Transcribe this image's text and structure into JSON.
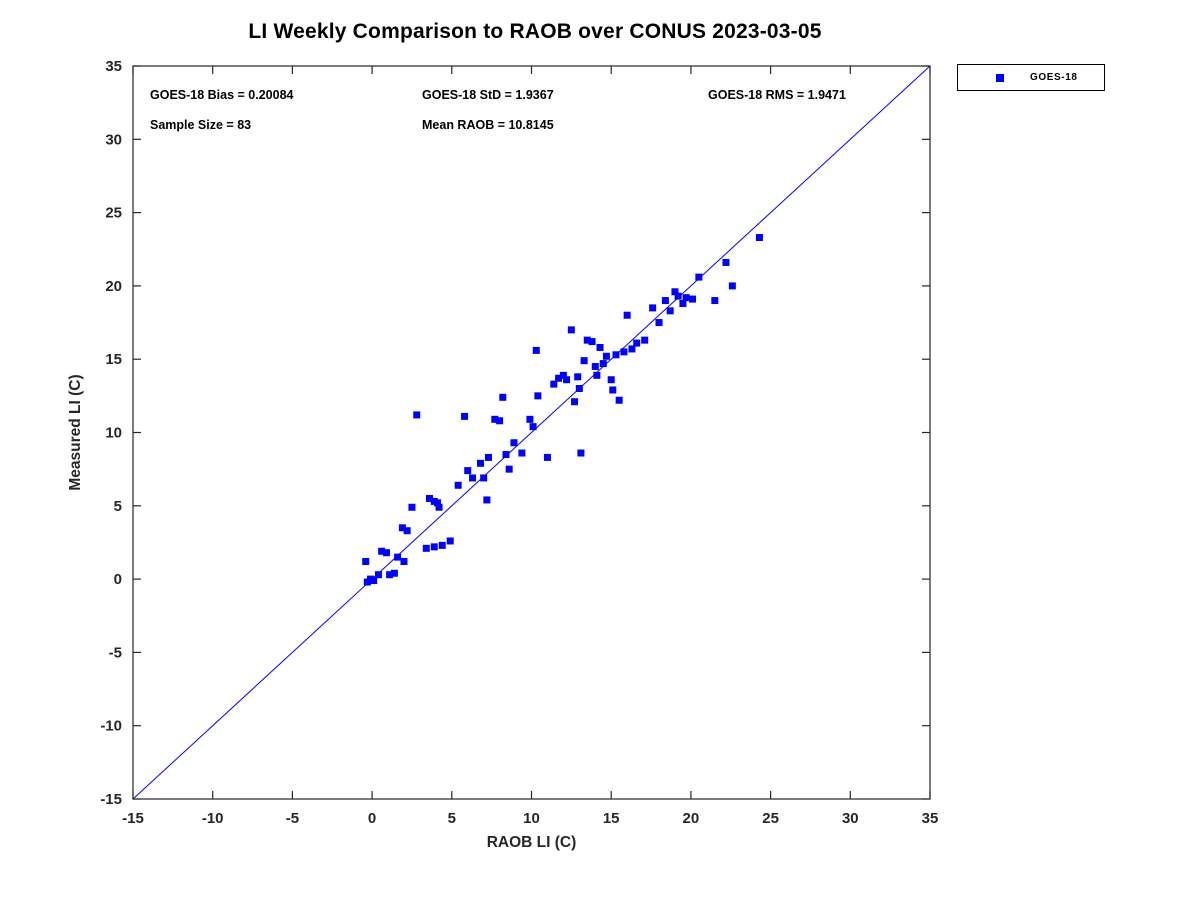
{
  "chart_data": {
    "type": "scatter",
    "title": "LI Weekly Comparison to RAOB over CONUS 2023-03-05",
    "xlabel": "RAOB LI (C)",
    "ylabel": "Measured LI (C)",
    "xlim": [
      -15,
      35
    ],
    "ylim": [
      -15,
      35
    ],
    "xticks": [
      -15,
      -10,
      -5,
      0,
      5,
      10,
      15,
      20,
      25,
      30,
      35
    ],
    "yticks": [
      -15,
      -10,
      -5,
      0,
      5,
      10,
      15,
      20,
      25,
      30,
      35
    ],
    "grid": false,
    "legend_position": "outside-top-right",
    "marker_color": "#0000ff",
    "identity_line": {
      "from": [
        -15,
        -15
      ],
      "to": [
        35,
        35
      ],
      "color": "#0000ff"
    },
    "stats": {
      "bias_label": "GOES-18 Bias = 0.20084",
      "std_label": "GOES-18 StD = 1.9367",
      "rms_label": "GOES-18 RMS = 1.9471",
      "sample_label": "Sample Size = 83",
      "mean_label": "Mean RAOB = 10.8145"
    },
    "series": [
      {
        "name": "GOES-18",
        "marker": "square",
        "points": [
          [
            -0.4,
            1.2
          ],
          [
            -0.3,
            -0.2
          ],
          [
            -0.1,
            0.0
          ],
          [
            0.1,
            -0.1
          ],
          [
            0.4,
            0.3
          ],
          [
            0.6,
            1.9
          ],
          [
            0.9,
            1.8
          ],
          [
            1.1,
            0.3
          ],
          [
            1.4,
            0.4
          ],
          [
            1.6,
            1.5
          ],
          [
            2.0,
            1.2
          ],
          [
            1.9,
            3.5
          ],
          [
            2.2,
            3.3
          ],
          [
            2.5,
            4.9
          ],
          [
            2.8,
            11.2
          ],
          [
            3.4,
            2.1
          ],
          [
            3.9,
            2.2
          ],
          [
            3.6,
            5.5
          ],
          [
            3.9,
            5.3
          ],
          [
            4.1,
            5.2
          ],
          [
            4.2,
            4.9
          ],
          [
            4.4,
            2.3
          ],
          [
            4.9,
            2.6
          ],
          [
            5.4,
            6.4
          ],
          [
            5.8,
            11.1
          ],
          [
            6.0,
            7.4
          ],
          [
            6.3,
            6.9
          ],
          [
            6.8,
            7.9
          ],
          [
            7.0,
            6.9
          ],
          [
            7.2,
            5.4
          ],
          [
            7.3,
            8.3
          ],
          [
            7.7,
            10.9
          ],
          [
            8.0,
            10.8
          ],
          [
            8.2,
            12.4
          ],
          [
            8.4,
            8.5
          ],
          [
            8.6,
            7.5
          ],
          [
            8.9,
            9.3
          ],
          [
            9.4,
            8.6
          ],
          [
            9.9,
            10.9
          ],
          [
            10.1,
            10.4
          ],
          [
            10.3,
            15.6
          ],
          [
            10.4,
            12.5
          ],
          [
            11.0,
            8.3
          ],
          [
            11.4,
            13.3
          ],
          [
            11.7,
            13.7
          ],
          [
            12.0,
            13.9
          ],
          [
            12.2,
            13.6
          ],
          [
            12.5,
            17.0
          ],
          [
            12.7,
            12.1
          ],
          [
            12.9,
            13.8
          ],
          [
            13.0,
            13.0
          ],
          [
            13.1,
            8.6
          ],
          [
            13.3,
            14.9
          ],
          [
            13.5,
            16.3
          ],
          [
            13.8,
            16.2
          ],
          [
            14.0,
            14.5
          ],
          [
            14.1,
            13.9
          ],
          [
            14.3,
            15.8
          ],
          [
            14.5,
            14.7
          ],
          [
            14.7,
            15.2
          ],
          [
            15.0,
            13.6
          ],
          [
            15.1,
            12.9
          ],
          [
            15.3,
            15.3
          ],
          [
            15.5,
            12.2
          ],
          [
            15.8,
            15.5
          ],
          [
            16.0,
            18.0
          ],
          [
            16.3,
            15.7
          ],
          [
            16.6,
            16.1
          ],
          [
            17.1,
            16.3
          ],
          [
            17.6,
            18.5
          ],
          [
            18.0,
            17.5
          ],
          [
            18.4,
            19.0
          ],
          [
            18.7,
            18.3
          ],
          [
            19.0,
            19.6
          ],
          [
            19.2,
            19.3
          ],
          [
            19.5,
            18.8
          ],
          [
            19.7,
            19.2
          ],
          [
            20.1,
            19.1
          ],
          [
            20.5,
            20.6
          ],
          [
            21.5,
            19.0
          ],
          [
            22.2,
            21.6
          ],
          [
            22.6,
            20.0
          ],
          [
            24.3,
            23.3
          ]
        ]
      }
    ]
  }
}
